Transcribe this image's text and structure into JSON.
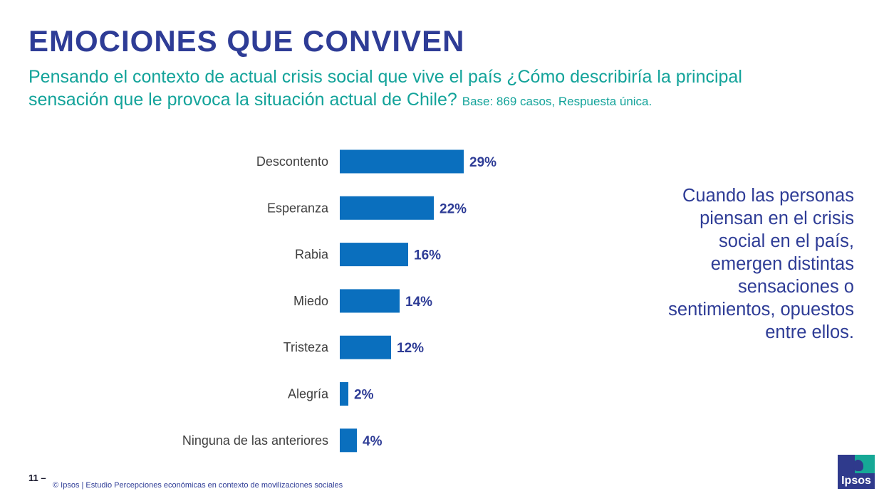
{
  "slide": {
    "title": "EMOCIONES QUE CONVIVEN",
    "question": "Pensando el contexto de actual crisis social que vive el país ¿Cómo describiría la principal sensación que le provoca la situación actual de Chile?",
    "base_note": "Base: 869 casos, Respuesta única.",
    "callout": "Cuando las personas piensan en el crisis social en el país, emergen distintas sensaciones o sentimientos, opuestos entre ellos.",
    "page_number": "11 –",
    "footer": "© Ipsos | Estudio Percepciones económicas en contexto de movilizaciones sociales",
    "logo_text": "Ipsos"
  },
  "chart_data": {
    "type": "bar",
    "orientation": "horizontal",
    "categories": [
      "Descontento",
      "Esperanza",
      "Rabia",
      "Miedo",
      "Tristeza",
      "Alegría",
      "Ninguna de las anteriores"
    ],
    "values": [
      29,
      22,
      16,
      14,
      12,
      2,
      4
    ],
    "value_labels": [
      "29%",
      "22%",
      "16%",
      "14%",
      "12%",
      "2%",
      "4%"
    ],
    "unit": "%",
    "xlim": [
      0,
      29
    ],
    "grid": false,
    "legend": "none"
  },
  "colors": {
    "title": "#2e3c96",
    "question": "#13a39a",
    "bar": "#0a6fbe",
    "value_label": "#2e3c96",
    "category_label": "#404040",
    "callout": "#2e3c96"
  }
}
